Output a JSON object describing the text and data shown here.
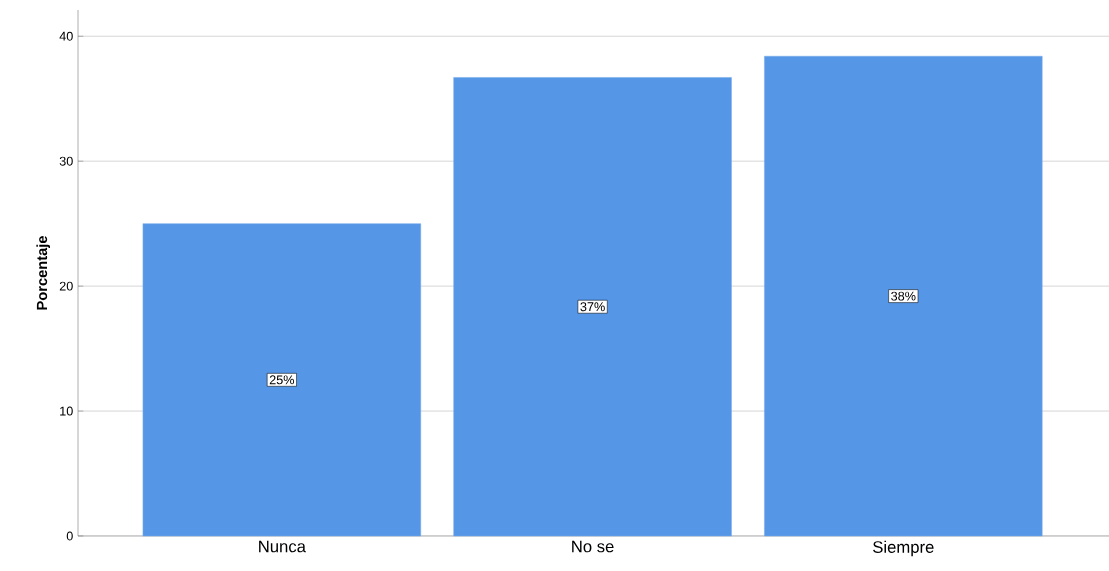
{
  "chart_data": {
    "type": "bar",
    "ylabel": "Porcentaje",
    "categories": [
      "Nunca",
      "No se",
      "Siempre"
    ],
    "values": [
      25.0,
      36.7,
      38.4
    ],
    "value_labels": [
      "25%",
      "37%",
      "38%"
    ],
    "color": "#5596e6",
    "ylim": [
      0,
      42.1
    ],
    "yticks": [
      0,
      10,
      20,
      30,
      40
    ],
    "grid": "y"
  }
}
